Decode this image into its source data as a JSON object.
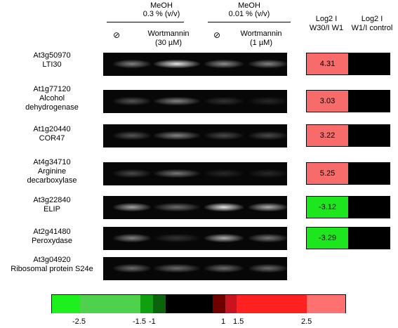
{
  "header": {
    "meoh_high": "MeOH",
    "meoh_high_conc": "0.3 % (v/v)",
    "meoh_low": "MeOH",
    "meoh_low_conc": "0.01 % (v/v)",
    "control_symbol": "⊘",
    "wort_high_label": "Wortmannin",
    "wort_high_conc": "(30 µM)",
    "wort_low_label": "Wortmannin",
    "wort_low_conc": "(1 µM)",
    "col1_line1": "Log2 I",
    "col1_line2": "W30/I W1",
    "col2_line1": "Log2 I",
    "col2_line2": "W1/I control"
  },
  "genes": [
    {
      "id": "At3g50970",
      "name": "LTI30",
      "name2": "",
      "log2": "4.31",
      "color": "#f76b6b",
      "bands": [
        0.55,
        1.0,
        0.6,
        0.55
      ]
    },
    {
      "id": "At1g77120",
      "name": "Alcohol",
      "name2": "dehydrogenase",
      "log2": "3.03",
      "color": "#f76b6b",
      "bands": [
        0.35,
        0.55,
        0.2,
        0.15
      ]
    },
    {
      "id": "At1g20440",
      "name": "COR47",
      "name2": "",
      "log2": "3.22",
      "color": "#f76b6b",
      "bands": [
        0.35,
        0.55,
        0.3,
        0.3
      ]
    },
    {
      "id": "At4g34710",
      "name": "Arginine",
      "name2": "decarboxylase",
      "log2": "5.25",
      "color": "#f76b6b",
      "bands": [
        0.3,
        0.5,
        0.15,
        0.15
      ]
    },
    {
      "id": "At3g22840",
      "name": "ELIP",
      "name2": "",
      "log2": "-3.12",
      "color": "#1ee61e",
      "bands": [
        0.7,
        0.45,
        1.0,
        0.75
      ]
    },
    {
      "id": "At2g41480",
      "name": "Peroxydase",
      "name2": "",
      "log2": "-3.29",
      "color": "#1ee61e",
      "bands": [
        0.55,
        0.2,
        0.75,
        0.5
      ]
    },
    {
      "id": "At3g04920",
      "name": "Ribosomal protein S24e",
      "name2": "",
      "log2": "",
      "color": "",
      "bands": [
        0.45,
        0.45,
        0.45,
        0.45
      ]
    }
  ],
  "scale": {
    "segments": [
      "#1ef01e",
      "#4ed24e",
      "#0f9f0f",
      "#0a640a",
      "#000000",
      "#6e0000",
      "#c8141e",
      "#ff2020",
      "#ff7070"
    ],
    "ticks": [
      "-2.5",
      "-1.5",
      "-1",
      "1",
      "1.5",
      "2.5"
    ]
  }
}
